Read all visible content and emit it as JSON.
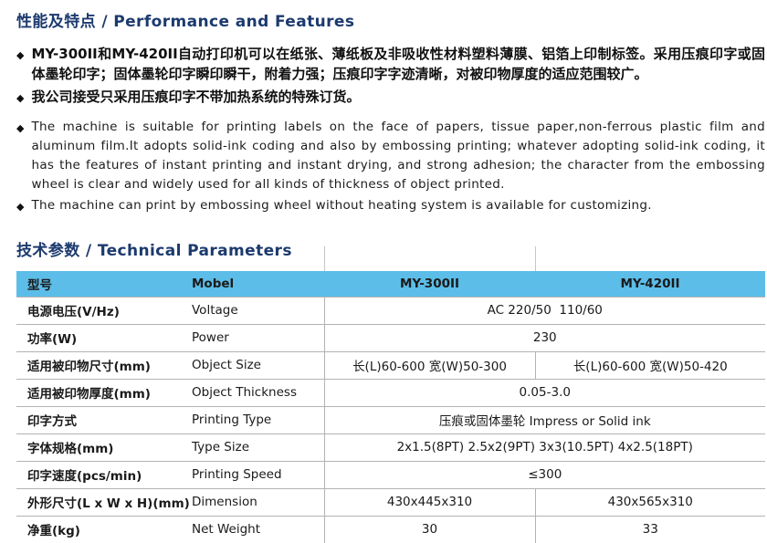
{
  "colors": {
    "title_blue": "#1c3a6e",
    "table_header_bg": "#5cbde8",
    "grid_line": "#b3b3b3",
    "body_text": "#1a1a1a"
  },
  "section1": {
    "title": "性能及特点 / Performance and Features",
    "bullet_glyph": "◆",
    "bullets_cn": [
      "MY-300II和MY-420II自动打印机可以在纸张、薄纸板及非吸收性材料塑料薄膜、铝箔上印制标签。采用压痕印字或固体墨轮印字；固体墨轮印字瞬印瞬干，附着力强；压痕印字字迹清晰，对被印物厚度的适应范围较广。",
      "我公司接受只采用压痕印字不带加热系统的特殊订货。"
    ],
    "bullets_en": [
      "The machine is suitable for printing labels on the face of papers, tissue paper,non-ferrous plastic film and aluminum film.It adopts solid-ink coding and also by embossing printing; whatever adopting solid-ink coding, it has the features of instant printing and instant drying, and strong adhesion; the character from the embossing wheel is clear and widely used for all kinds of thickness of object printed.",
      "The machine can print by embossing wheel without heating system is available for customizing."
    ]
  },
  "section2": {
    "title": "技术参数 / Technical Parameters",
    "table": {
      "header": {
        "label_cn": "型号",
        "label_en": "Mobel",
        "col1": "MY-300II",
        "col2": "MY-420II"
      },
      "rows": [
        {
          "label_cn": "电源电压(V/Hz)",
          "label_en": "Voltage",
          "span": "AC 220/50  110/60"
        },
        {
          "label_cn": "功率(W)",
          "label_en": "Power",
          "span": "230"
        },
        {
          "label_cn": "适用被印物尺寸(mm)",
          "label_en": "Object Size",
          "col1": "长(L)60-600 宽(W)50-300",
          "col2": "长(L)60-600 宽(W)50-420"
        },
        {
          "label_cn": "适用被印物厚度(mm)",
          "label_en": "Object Thickness",
          "span": "0.05-3.0"
        },
        {
          "label_cn": "印字方式",
          "label_en": "Printing Type",
          "span": "压痕或固体墨轮 Impress or Solid ink"
        },
        {
          "label_cn": "字体规格(mm)",
          "label_en": "Type Size",
          "span": "2x1.5(8PT) 2.5x2(9PT) 3x3(10.5PT) 4x2.5(18PT)"
        },
        {
          "label_cn": "印字速度(pcs/min)",
          "label_en": "Printing Speed",
          "span": "≤300"
        },
        {
          "label_cn": "外形尺寸(L x W x H)(mm)",
          "label_en": "Dimension",
          "col1": "430x445x310",
          "col2": "430x565x310"
        },
        {
          "label_cn": "净重(kg)",
          "label_en": "Net Weight",
          "col1": "30",
          "col2": "33"
        }
      ]
    }
  }
}
